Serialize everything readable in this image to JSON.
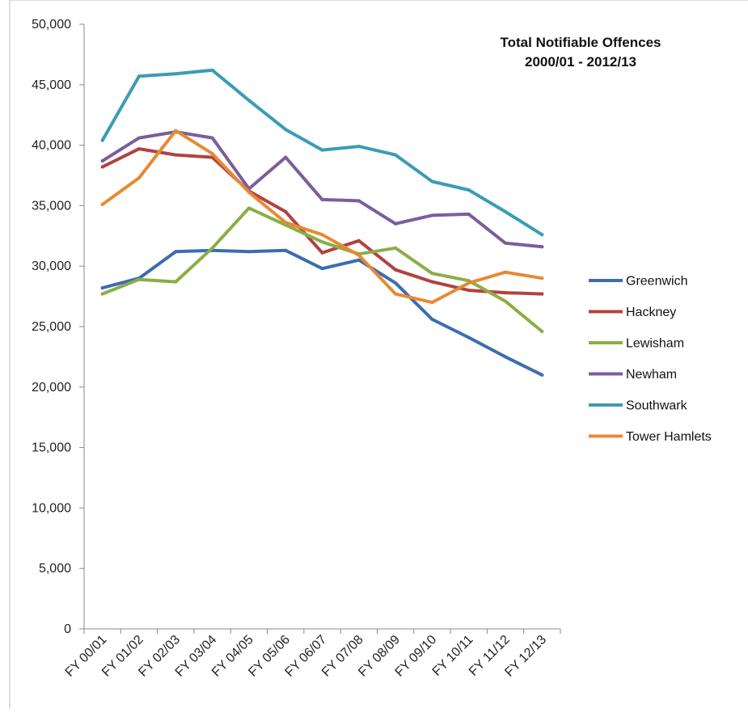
{
  "chart_data": {
    "type": "line",
    "title": [
      "Total Notifiable Offences",
      "2000/01  - 2012/13"
    ],
    "xlabel": "",
    "ylabel": "",
    "ylim": [
      0,
      50000
    ],
    "yticks": [
      0,
      5000,
      10000,
      15000,
      20000,
      25000,
      30000,
      35000,
      40000,
      45000,
      50000
    ],
    "ytick_labels": [
      "0",
      "5,000",
      "10,000",
      "15,000",
      "20,000",
      "25,000",
      "30,000",
      "35,000",
      "40,000",
      "45,000",
      "50,000"
    ],
    "categories": [
      "FY 00/01",
      "FY 01/02",
      "FY 02/03",
      "FY 03/04",
      "FY 04/05",
      "FY 05/06",
      "FY 06/07",
      "FY 07/08",
      "FY 08/09",
      "FY 09/10",
      "FY 10/11",
      "FY 11/12",
      "FY 12/13"
    ],
    "grid": false,
    "legend_position": "right",
    "series": [
      {
        "name": "Greenwich",
        "color": "#3d6cb0",
        "values": [
          28200,
          29000,
          31200,
          31300,
          31200,
          31300,
          29800,
          30500,
          28600,
          25600,
          24100,
          22500,
          21000
        ]
      },
      {
        "name": "Hackney",
        "color": "#b24240",
        "values": [
          38200,
          39700,
          39200,
          39000,
          36200,
          34500,
          31100,
          32100,
          29700,
          28700,
          28000,
          27800,
          27700
        ]
      },
      {
        "name": "Lewisham",
        "color": "#8bae45",
        "values": [
          27700,
          28900,
          28700,
          31500,
          34800,
          33400,
          32000,
          31000,
          31500,
          29400,
          28800,
          27100,
          24600
        ]
      },
      {
        "name": "Newham",
        "color": "#7a5e9b",
        "values": [
          38700,
          40600,
          41100,
          40600,
          36400,
          39000,
          35500,
          35400,
          33500,
          34200,
          34300,
          31900,
          31600
        ]
      },
      {
        "name": "Southwark",
        "color": "#3b9cb5",
        "values": [
          40400,
          45700,
          45900,
          46200,
          43700,
          41300,
          39600,
          39900,
          39200,
          37000,
          36300,
          34500,
          32600
        ]
      },
      {
        "name": "Tower Hamlets",
        "color": "#e68a34",
        "values": [
          35100,
          37300,
          41200,
          39300,
          36100,
          33600,
          32600,
          30900,
          27700,
          27000,
          28600,
          29500,
          29000
        ]
      }
    ]
  }
}
